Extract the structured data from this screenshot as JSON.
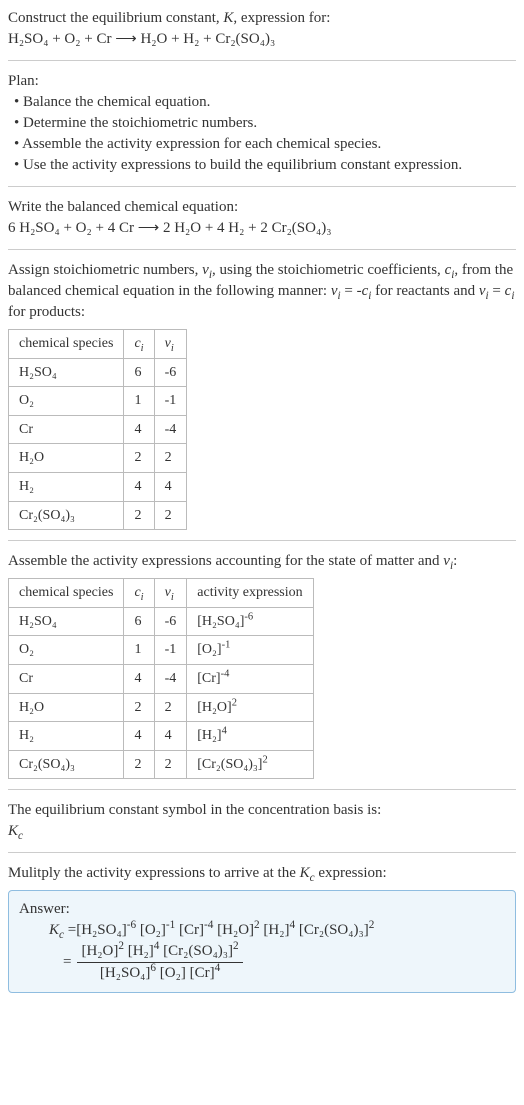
{
  "intro": {
    "line1": "Construct the equilibrium constant, K, expression for:",
    "equation": "H₂SO₄ + O₂ + Cr ⟶ H₂O + H₂ + Cr₂(SO₄)₃"
  },
  "plan": {
    "title": "Plan:",
    "items": [
      "• Balance the chemical equation.",
      "• Determine the stoichiometric numbers.",
      "• Assemble the activity expression for each chemical species.",
      "• Use the activity expressions to build the equilibrium constant expression."
    ]
  },
  "balanced": {
    "title": "Write the balanced chemical equation:",
    "equation": "6 H₂SO₄ + O₂ + 4 Cr ⟶ 2 H₂O + 4 H₂ + 2 Cr₂(SO₄)₃"
  },
  "assign": {
    "text1": "Assign stoichiometric numbers, νᵢ, using the stoichiometric coefficients, cᵢ, from the balanced chemical equation in the following manner: νᵢ = -cᵢ for reactants and νᵢ = cᵢ for products:",
    "headers": [
      "chemical species",
      "cᵢ",
      "νᵢ"
    ],
    "rows": [
      [
        "H₂SO₄",
        "6",
        "-6"
      ],
      [
        "O₂",
        "1",
        "-1"
      ],
      [
        "Cr",
        "4",
        "-4"
      ],
      [
        "H₂O",
        "2",
        "2"
      ],
      [
        "H₂",
        "4",
        "4"
      ],
      [
        "Cr₂(SO₄)₃",
        "2",
        "2"
      ]
    ]
  },
  "activity": {
    "title": "Assemble the activity expressions accounting for the state of matter and νᵢ:",
    "headers": [
      "chemical species",
      "cᵢ",
      "νᵢ",
      "activity expression"
    ],
    "rows": [
      {
        "sp": "H₂SO₄",
        "c": "6",
        "v": "-6",
        "expr_base": "[H₂SO₄]",
        "expr_pow": "-6"
      },
      {
        "sp": "O₂",
        "c": "1",
        "v": "-1",
        "expr_base": "[O₂]",
        "expr_pow": "-1"
      },
      {
        "sp": "Cr",
        "c": "4",
        "v": "-4",
        "expr_base": "[Cr]",
        "expr_pow": "-4"
      },
      {
        "sp": "H₂O",
        "c": "2",
        "v": "2",
        "expr_base": "[H₂O]",
        "expr_pow": "2"
      },
      {
        "sp": "H₂",
        "c": "4",
        "v": "4",
        "expr_base": "[H₂]",
        "expr_pow": "4"
      },
      {
        "sp": "Cr₂(SO₄)₃",
        "c": "2",
        "v": "2",
        "expr_base": "[Cr₂(SO₄)₃]",
        "expr_pow": "2"
      }
    ]
  },
  "symbol": {
    "line1": "The equilibrium constant symbol in the concentration basis is:",
    "line2": "K𝒸"
  },
  "multiply": {
    "title": "Mulitply the activity expressions to arrive at the K𝒸 expression:"
  },
  "answer": {
    "label": "Answer:",
    "prefix": "K𝒸 = ",
    "flat_terms": [
      {
        "base": "[H₂SO₄]",
        "pow": "-6"
      },
      {
        "base": "[O₂]",
        "pow": "-1"
      },
      {
        "base": "[Cr]",
        "pow": "-4"
      },
      {
        "base": "[H₂O]",
        "pow": "2"
      },
      {
        "base": "[H₂]",
        "pow": "4"
      },
      {
        "base": "[Cr₂(SO₄)₃]",
        "pow": "2"
      }
    ],
    "eq": " = ",
    "frac_num": [
      {
        "base": "[H₂O]",
        "pow": "2"
      },
      {
        "base": "[H₂]",
        "pow": "4"
      },
      {
        "base": "[Cr₂(SO₄)₃]",
        "pow": "2"
      }
    ],
    "frac_den": [
      {
        "base": "[H₂SO₄]",
        "pow": "6"
      },
      {
        "base": "[O₂]",
        "pow": ""
      },
      {
        "base": "[Cr]",
        "pow": "4"
      }
    ]
  }
}
